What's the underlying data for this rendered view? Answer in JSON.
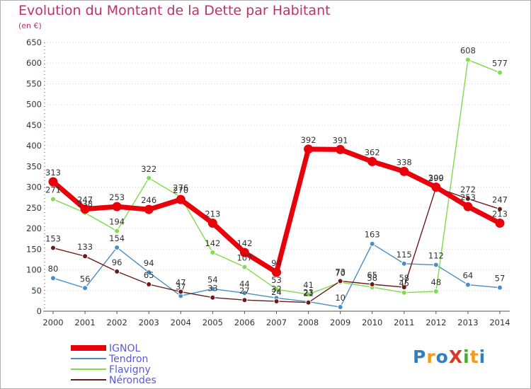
{
  "title": "Evolution du Montant de la Dette par Habitant",
  "subtitle": "(en €)",
  "logo": {
    "text": "ProXiti",
    "letters": [
      {
        "ch": "P",
        "color": "#2f7fc1"
      },
      {
        "ch": "r",
        "color": "#f29a1d"
      },
      {
        "ch": "o",
        "color": "#2f7fc1"
      },
      {
        "ch": "X",
        "color": "#d43a2a"
      },
      {
        "ch": "i",
        "color": "#4aa83a"
      },
      {
        "ch": "t",
        "color": "#f29a1d"
      },
      {
        "ch": "i",
        "color": "#2f7fc1"
      }
    ]
  },
  "chart_data": {
    "type": "line",
    "x": [
      "2000",
      "2001",
      "2002",
      "2003",
      "2004",
      "2005",
      "2006",
      "2007",
      "2008",
      "2009",
      "2010",
      "2011",
      "2012",
      "2013",
      "2014"
    ],
    "ylim": [
      0,
      650
    ],
    "yticks": [
      0,
      50,
      100,
      150,
      200,
      250,
      300,
      350,
      400,
      450,
      500,
      550,
      600,
      650
    ],
    "grid": true,
    "legend_position": "bottom-left",
    "series": [
      {
        "name": "IGNOL",
        "color": "#e8000b",
        "values": [
          313,
          247,
          253,
          246,
          270,
          213,
          142,
          94,
          392,
          391,
          362,
          338,
          300,
          253,
          213
        ],
        "labels": [
          "313",
          "247",
          "253",
          "246",
          "270",
          "213",
          "142",
          "94",
          "392",
          "391",
          "362",
          "338",
          "300",
          "253",
          "213"
        ]
      },
      {
        "name": "Tendron",
        "color": "#4a8ec5",
        "values": [
          80,
          56,
          154,
          94,
          37,
          54,
          44,
          32,
          23,
          10,
          163,
          115,
          112,
          64,
          57
        ],
        "labels": [
          "80",
          "56",
          "154",
          "94",
          "37",
          "54",
          "44",
          "32",
          "23",
          "10",
          "163",
          "115",
          "112",
          "64",
          "57"
        ]
      },
      {
        "name": "Flavigny",
        "color": "#7fdc4a",
        "values": [
          271,
          238,
          194,
          322,
          276,
          142,
          107,
          53,
          41,
          70,
          58,
          45,
          48,
          608,
          577
        ],
        "labels": [
          "271",
          "238",
          "194",
          "322",
          "276",
          "142",
          "107",
          "53",
          "41",
          "70",
          "58",
          "45",
          "48",
          "608",
          "577"
        ]
      },
      {
        "name": "Nérondes",
        "color": "#6b1a1a",
        "values": [
          153,
          133,
          96,
          65,
          47,
          33,
          27,
          24,
          21,
          73,
          65,
          58,
          299,
          272,
          247
        ],
        "labels": [
          "153",
          "133",
          "96",
          "65",
          "47",
          "33",
          "27",
          "24",
          "21",
          "73",
          "65",
          "58",
          "299",
          "272",
          "247"
        ]
      }
    ]
  }
}
